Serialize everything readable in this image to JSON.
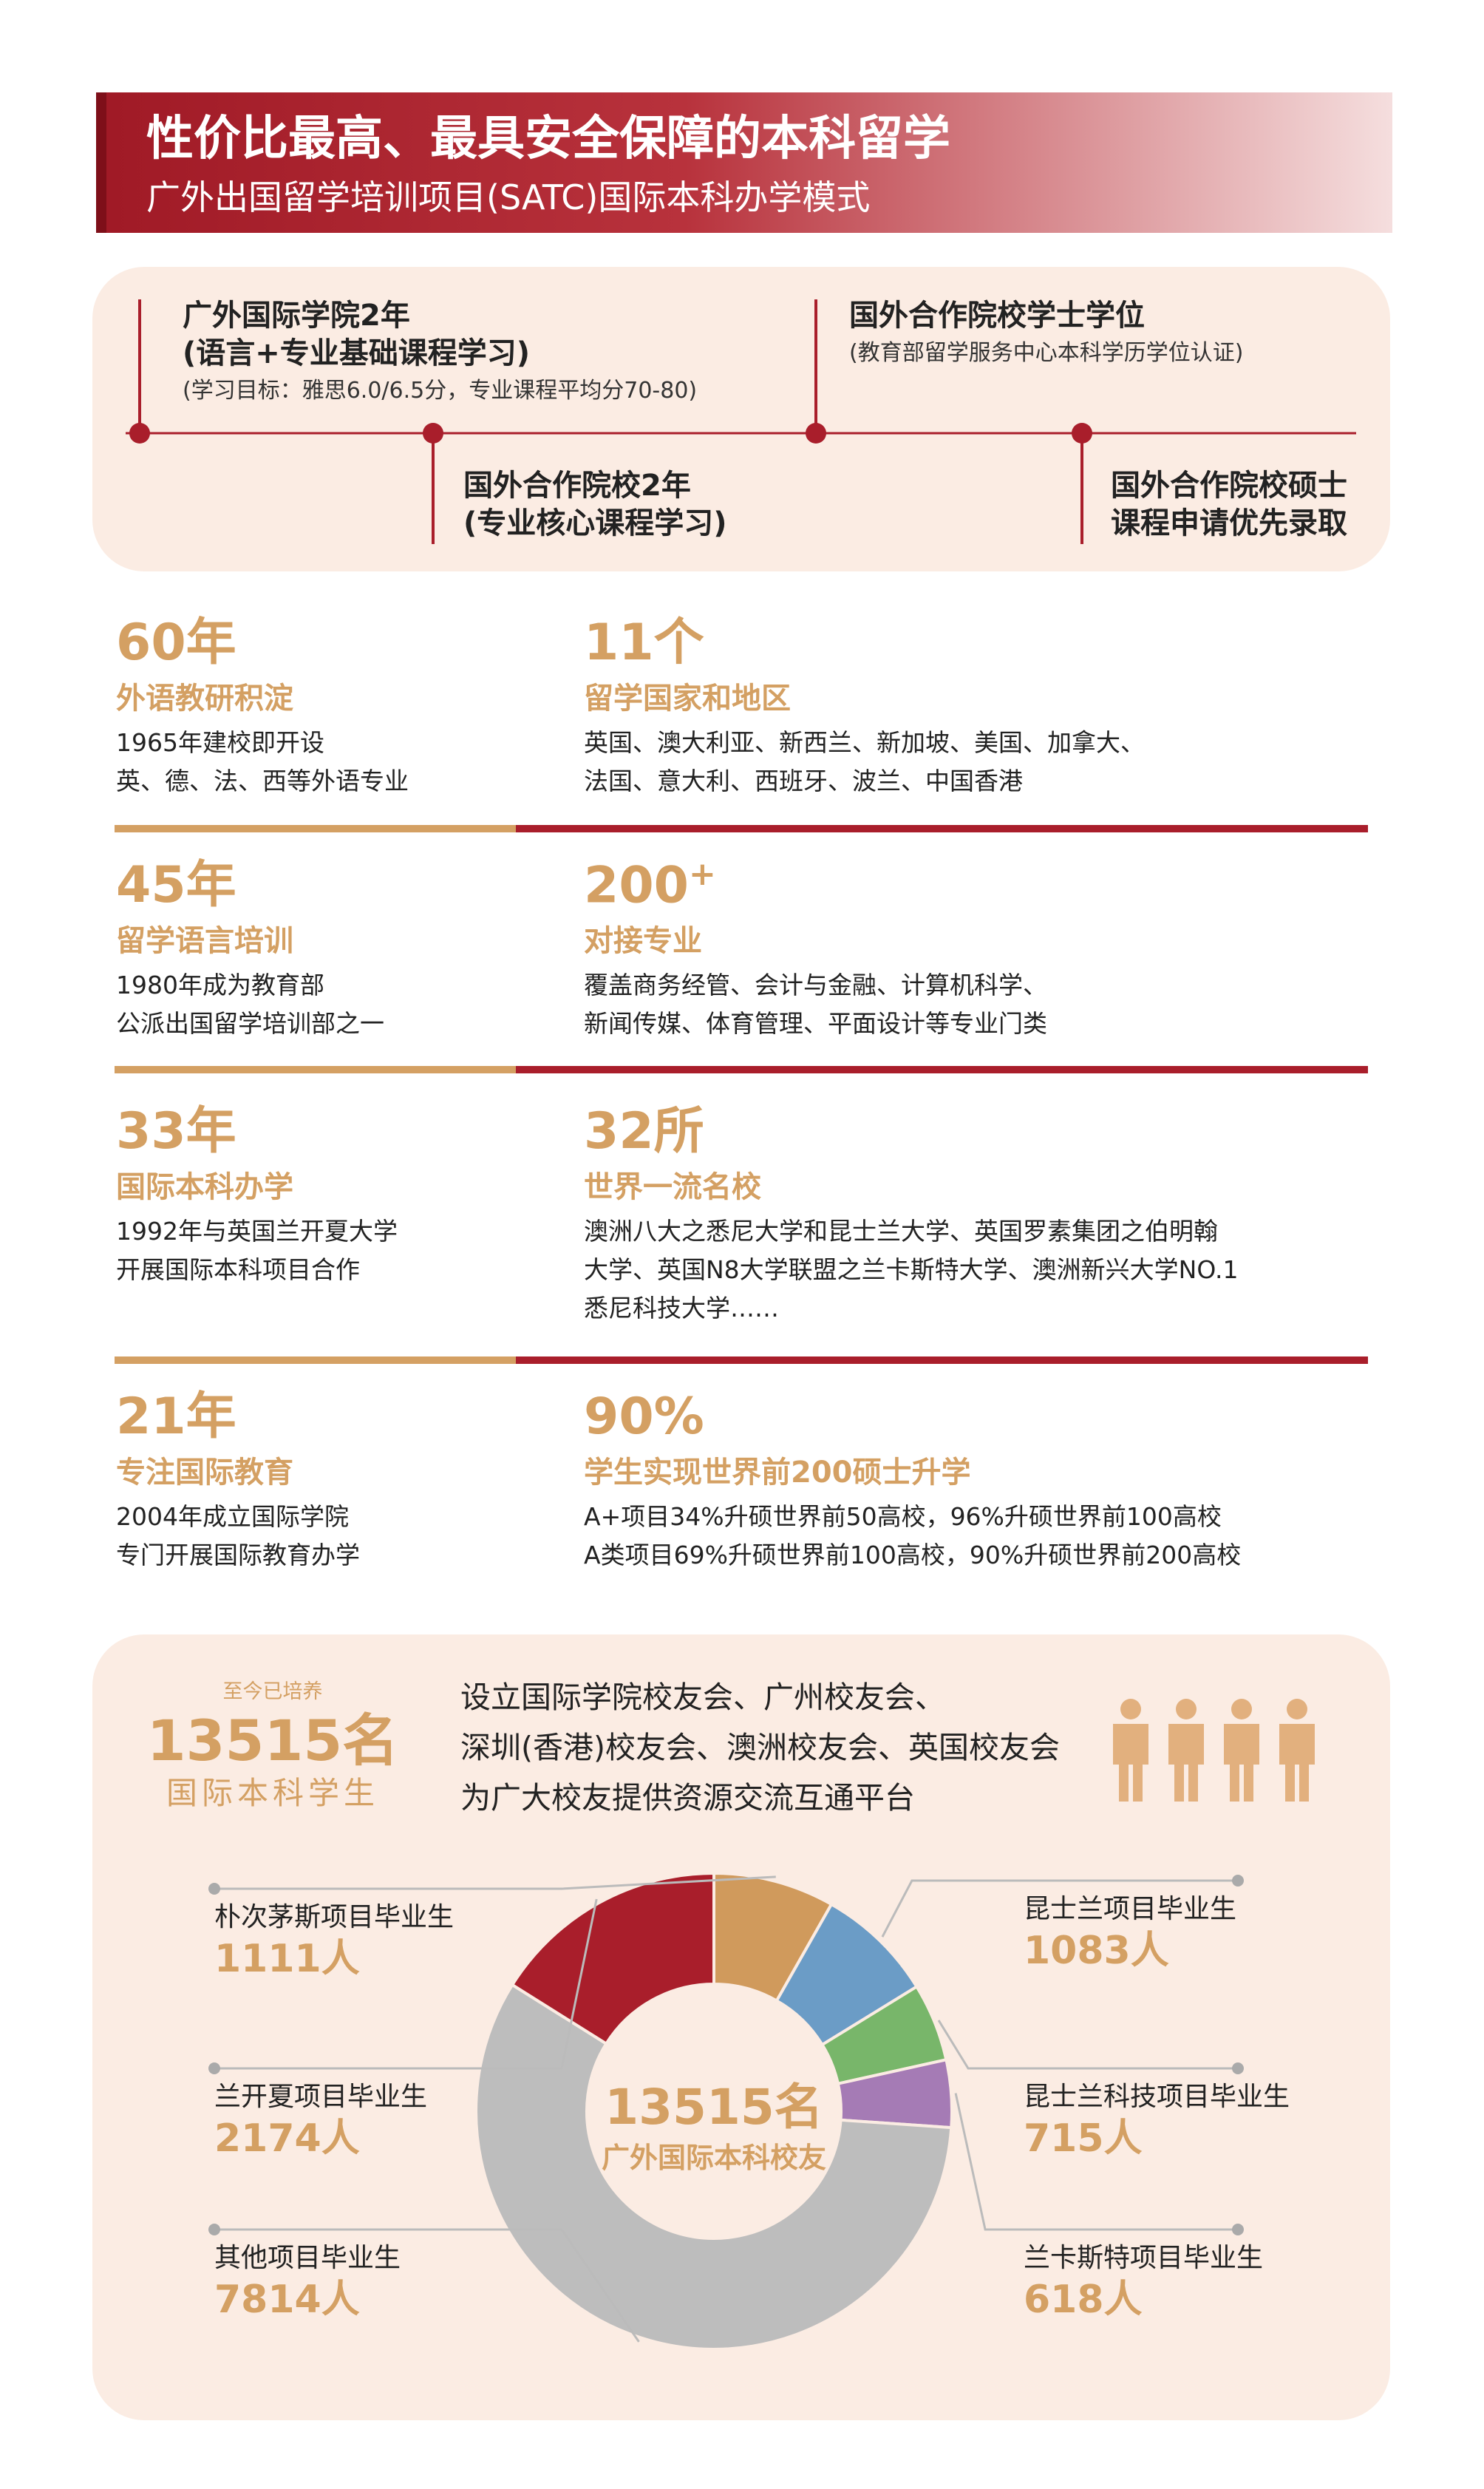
{
  "header": {
    "title": "性价比最高、最具安全保障的本科留学",
    "subtitle": "广外出国留学培训项目(SATC)国际本科办学模式"
  },
  "timeline": [
    {
      "lines": [
        "广外国际学院2年",
        "(语言+专业基础课程学习)"
      ],
      "note": "(学习目标：雅思6.0/6.5分，专业课程平均分70-80)"
    },
    {
      "lines": [
        "国外合作院校2年",
        "(专业核心课程学习)"
      ]
    },
    {
      "lines": [
        "国外合作院校学士学位"
      ],
      "note": "(教育部留学服务中心本科学历学位认证)"
    },
    {
      "lines": [
        "国外合作院校硕士",
        "课程申请优先录取"
      ]
    }
  ],
  "stats": [
    {
      "left": {
        "big": "60年",
        "label": "外语教研积淀",
        "lines": [
          "1965年建校即开设",
          "英、德、法、西等外语专业"
        ]
      },
      "right": {
        "big": "11个",
        "label": "留学国家和地区",
        "lines": [
          "英国、澳大利亚、新西兰、新加坡、美国、加拿大、",
          "法国、意大利、西班牙、波兰、中国香港"
        ]
      }
    },
    {
      "left": {
        "big": "45年",
        "label": "留学语言培训",
        "lines": [
          "1980年成为教育部",
          "公派出国留学培训部之一"
        ]
      },
      "right": {
        "big": "200",
        "sup": "+",
        "label": "对接专业",
        "lines": [
          "覆盖商务经管、会计与金融、计算机科学、",
          "新闻传媒、体育管理、平面设计等专业门类"
        ]
      }
    },
    {
      "left": {
        "big": "33年",
        "label": "国际本科办学",
        "lines": [
          "1992年与英国兰开夏大学",
          "开展国际本科项目合作"
        ]
      },
      "right": {
        "big": "32所",
        "label": "世界一流名校",
        "lines": [
          "澳洲八大之悉尼大学和昆士兰大学、英国罗素集团之伯明翰",
          "大学、英国N8大学联盟之兰卡斯特大学、澳洲新兴大学NO.1",
          "悉尼科技大学……"
        ]
      }
    },
    {
      "left": {
        "big": "21年",
        "label": "专注国际教育",
        "lines": [
          "2004年成立国际学院",
          "专门开展国际教育办学"
        ]
      },
      "right": {
        "big": "90%",
        "label": "学生实现世界前200硕士升学",
        "lines": [
          "A+项目34%升硕世界前50高校，96%升硕世界前100高校",
          "A类项目69%升硕世界前100高校，90%升硕世界前200高校"
        ]
      }
    }
  ],
  "alumni": {
    "caption": "至今已培养",
    "count": "13515名",
    "label": "国际本科学生",
    "lines": [
      "设立国际学院校友会、广州校友会、",
      "深圳(香港)校友会、澳洲校友会、英国校友会",
      "为广大校友提供资源交流互通平台"
    ]
  },
  "chart_data": {
    "type": "donut",
    "center_title": "13515名",
    "center_subtitle": "广外国际本科校友",
    "categories": [
      "朴次茅斯项目毕业生",
      "昆士兰项目毕业生",
      "昆士兰科技项目毕业生",
      "兰卡斯特项目毕业生",
      "其他项目毕业生",
      "兰开夏项目毕业生"
    ],
    "values": [
      1111,
      1083,
      715,
      618,
      7814,
      2174
    ],
    "value_labels": [
      "1111人",
      "1083人",
      "715人",
      "618人",
      "7814人",
      "2174人"
    ],
    "colors": [
      "#d09a5c",
      "#6b9cc6",
      "#78b66a",
      "#a57bb5",
      "#bdbdbd",
      "#a91e2b"
    ]
  }
}
